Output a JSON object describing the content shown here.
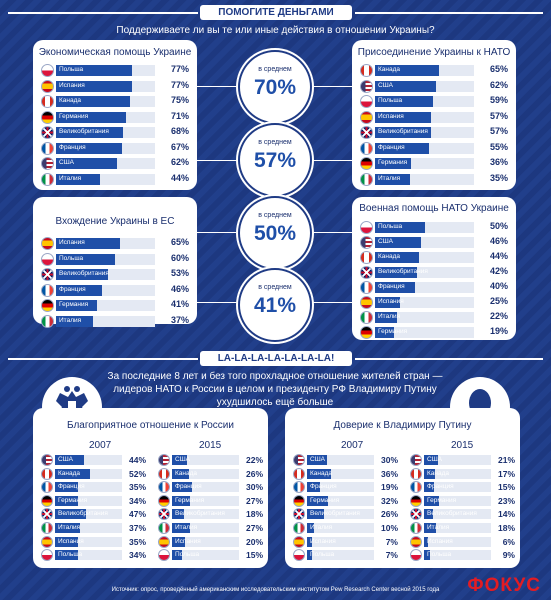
{
  "header": {
    "title": "ПОМОГИТЕ ДЕНЬГАМИ",
    "question": "Поддерживаете ли вы те или иные действия в отношении Украины?"
  },
  "panels": [
    {
      "title": "Экономическая помощь Украине",
      "rows": [
        {
          "country": "Польша",
          "flag": "pl",
          "value": 77
        },
        {
          "country": "Испания",
          "flag": "es",
          "value": 77
        },
        {
          "country": "Канада",
          "flag": "ca",
          "value": 75
        },
        {
          "country": "Германия",
          "flag": "de",
          "value": 71
        },
        {
          "country": "Великобритания",
          "flag": "gb",
          "value": 68
        },
        {
          "country": "Франция",
          "flag": "fr",
          "value": 67
        },
        {
          "country": "США",
          "flag": "us",
          "value": 62
        },
        {
          "country": "Италия",
          "flag": "it",
          "value": 44
        }
      ]
    },
    {
      "title": "Присоединение Украины к НАТО",
      "rows": [
        {
          "country": "Канада",
          "flag": "ca",
          "value": 65
        },
        {
          "country": "США",
          "flag": "us",
          "value": 62
        },
        {
          "country": "Польша",
          "flag": "pl",
          "value": 59
        },
        {
          "country": "Испания",
          "flag": "es",
          "value": 57
        },
        {
          "country": "Великобритания",
          "flag": "gb",
          "value": 57
        },
        {
          "country": "Франция",
          "flag": "fr",
          "value": 55
        },
        {
          "country": "Германия",
          "flag": "de",
          "value": 36
        },
        {
          "country": "Италия",
          "flag": "it",
          "value": 35
        }
      ]
    },
    {
      "title": "Вхождение Украины в ЕС",
      "rows": [
        {
          "country": "Испания",
          "flag": "es",
          "value": 65
        },
        {
          "country": "Польша",
          "flag": "pl",
          "value": 60
        },
        {
          "country": "Великобритания",
          "flag": "gb",
          "value": 53
        },
        {
          "country": "Франция",
          "flag": "fr",
          "value": 46
        },
        {
          "country": "Германия",
          "flag": "de",
          "value": 41
        },
        {
          "country": "Италия",
          "flag": "it",
          "value": 37
        }
      ]
    },
    {
      "title": "Военная помощь НАТО Украине",
      "rows": [
        {
          "country": "Польша",
          "flag": "pl",
          "value": 50
        },
        {
          "country": "США",
          "flag": "us",
          "value": 46
        },
        {
          "country": "Канада",
          "flag": "ca",
          "value": 44
        },
        {
          "country": "Великобритания",
          "flag": "gb",
          "value": 42
        },
        {
          "country": "Франция",
          "flag": "fr",
          "value": 40
        },
        {
          "country": "Испания",
          "flag": "es",
          "value": 25
        },
        {
          "country": "Италия",
          "flag": "it",
          "value": 22
        },
        {
          "country": "Германия",
          "flag": "de",
          "value": 19
        }
      ]
    }
  ],
  "averages": [
    {
      "label": "в среднем",
      "value": "70%"
    },
    {
      "label": "в среднем",
      "value": "57%"
    },
    {
      "label": "в среднем",
      "value": "50%"
    },
    {
      "label": "в среднем",
      "value": "41%"
    }
  ],
  "section2": {
    "title": "LA-LA-LA-LA-LA-LA-LA!",
    "text": "За последние 8 лет и без того прохладное отношение жителей стран — лидеров НАТО к России в целом и президенту РФ Владимиру Путину ухудшилось ещё больше"
  },
  "bottom": [
    {
      "title": "Благоприятное отношение к России",
      "col1": {
        "year": "2007",
        "rows": [
          {
            "country": "США",
            "flag": "us",
            "value": 44
          },
          {
            "country": "Канада",
            "flag": "ca",
            "value": 52
          },
          {
            "country": "Франция",
            "flag": "fr",
            "value": 35
          },
          {
            "country": "Германия",
            "flag": "de",
            "value": 34
          },
          {
            "country": "Великобритания",
            "flag": "gb",
            "value": 47
          },
          {
            "country": "Италия",
            "flag": "it",
            "value": 37
          },
          {
            "country": "Испания",
            "flag": "es",
            "value": 35
          },
          {
            "country": "Польша",
            "flag": "pl",
            "value": 34
          }
        ]
      },
      "col2": {
        "year": "2015",
        "rows": [
          {
            "country": "США",
            "flag": "us",
            "value": 22
          },
          {
            "country": "Канада",
            "flag": "ca",
            "value": 26
          },
          {
            "country": "Франция",
            "flag": "fr",
            "value": 30
          },
          {
            "country": "Германия",
            "flag": "de",
            "value": 27
          },
          {
            "country": "Великобритания",
            "flag": "gb",
            "value": 18
          },
          {
            "country": "Италия",
            "flag": "it",
            "value": 27
          },
          {
            "country": "Испания",
            "flag": "es",
            "value": 20
          },
          {
            "country": "Польша",
            "flag": "pl",
            "value": 15
          }
        ]
      }
    },
    {
      "title": "Доверие к Владимиру Путину",
      "col1": {
        "year": "2007",
        "rows": [
          {
            "country": "США",
            "flag": "us",
            "value": 30
          },
          {
            "country": "Канада",
            "flag": "ca",
            "value": 36
          },
          {
            "country": "Франция",
            "flag": "fr",
            "value": 19
          },
          {
            "country": "Германия",
            "flag": "de",
            "value": 32
          },
          {
            "country": "Великобритания",
            "flag": "gb",
            "value": 26
          },
          {
            "country": "Италия",
            "flag": "it",
            "value": 10
          },
          {
            "country": "Испания",
            "flag": "es",
            "value": 7
          },
          {
            "country": "Польша",
            "flag": "pl",
            "value": 7
          }
        ]
      },
      "col2": {
        "year": "2015",
        "rows": [
          {
            "country": "США",
            "flag": "us",
            "value": 21
          },
          {
            "country": "Канада",
            "flag": "ca",
            "value": 17
          },
          {
            "country": "Франция",
            "flag": "fr",
            "value": 15
          },
          {
            "country": "Германия",
            "flag": "de",
            "value": 23
          },
          {
            "country": "Великобритания",
            "flag": "gb",
            "value": 14
          },
          {
            "country": "Италия",
            "flag": "it",
            "value": 18
          },
          {
            "country": "Испания",
            "flag": "es",
            "value": 6
          },
          {
            "country": "Польша",
            "flag": "pl",
            "value": 9
          }
        ]
      }
    }
  ],
  "footer": {
    "source": "Источник: опрос, проведённый американским исследовательским институтом Pew Research Center весной 2015 года",
    "brand": "ФОКУС"
  },
  "colors": {
    "background": "#1f3b85",
    "bar": "#1f4fa8",
    "accent": "#e31c23"
  }
}
